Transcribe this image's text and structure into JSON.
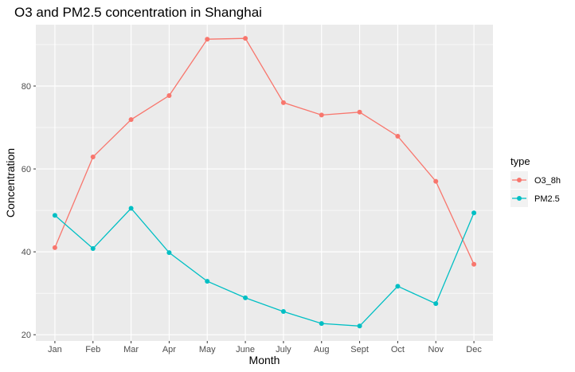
{
  "chart_data": {
    "type": "line",
    "title": "O3 and PM2.5 concentration in Shanghai",
    "xlabel": "Month",
    "ylabel": "Concentration",
    "categories": [
      "Jan",
      "Feb",
      "Mar",
      "Apr",
      "May",
      "June",
      "July",
      "Aug",
      "Sept",
      "Oct",
      "Nov",
      "Dec"
    ],
    "yticks": [
      20,
      40,
      60,
      80
    ],
    "ylim": [
      18.5,
      94.8
    ],
    "grid": true,
    "legend": {
      "title": "type",
      "position": "right"
    },
    "series": [
      {
        "name": "O3_8h",
        "color": "#F8766D",
        "values": [
          41.0,
          62.9,
          71.9,
          77.7,
          91.3,
          91.5,
          76.0,
          73.0,
          73.7,
          67.9,
          57.0,
          37.0
        ]
      },
      {
        "name": "PM2.5",
        "color": "#00BFC4",
        "values": [
          48.8,
          40.8,
          50.5,
          39.8,
          32.9,
          28.9,
          25.6,
          22.7,
          22.1,
          31.7,
          27.5,
          49.4
        ]
      }
    ]
  }
}
